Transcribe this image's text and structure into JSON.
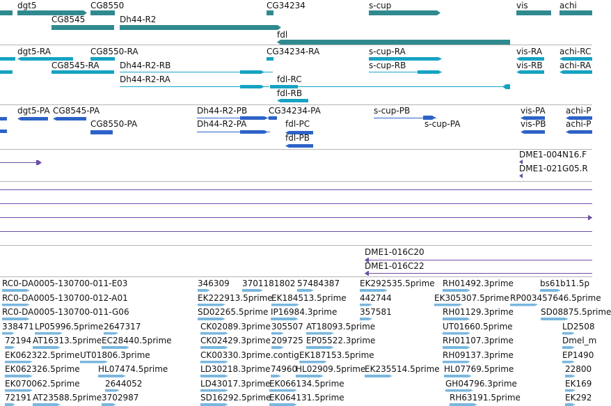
{
  "colors": {
    "gene": "#2f8a8f",
    "transcript": "#16a3c3",
    "protein": "#2d62c8",
    "clone": "#6a4fa6",
    "est": "#7ab7de",
    "separator": "#b4b4b4",
    "text": "#111111"
  },
  "tracks": {
    "genes": [
      "dgt5",
      "CG8550",
      "CG34234",
      "s-cup",
      "vis",
      "achi",
      "CG8545",
      "Dh44-R2",
      "fdl"
    ],
    "transcripts": [
      "dgt5-RA",
      "CG8550-RA",
      "CG34234-RA",
      "s-cup-RA",
      "vis-RA",
      "achi-RC",
      "CG8545-RA",
      "Dh44-R2-RB",
      "s-cup-RB",
      "vis-RB",
      "achi-RA",
      "Dh44-R2-RA",
      "fdl-RC",
      "fdl-RB"
    ],
    "proteins": [
      "dgt5-PA",
      "CG8545-PA",
      "Dh44-R2-PB",
      "CG34234-PA",
      "s-cup-PB",
      "vis-PA",
      "achi-P",
      "CG8550-PA",
      "Dh44-R2-PA",
      "fdl-PC",
      "s-cup-PA",
      "vis-PB",
      "achi-P",
      "fdl-PB"
    ],
    "clones": [
      "DME1-004N16.F",
      "DME1-021G05.R"
    ],
    "clones2": [
      "DME1-016C20",
      "DME1-016C22"
    ],
    "ests": [
      "RC0-DA0005-130700-011-E03",
      "346309",
      "3701181802",
      "57484387",
      "EK292535.5prime",
      "RH01492.3prime",
      "bs61b11.5p",
      "RC0-DA0005-130700-012-A01",
      "EK222913.5prime",
      "EK184513.5prime",
      "442744",
      "EK305307.5prime",
      "RP003457646.5prime",
      "RC0-DA0005-130700-011-G06",
      "SD02265.5prime",
      "IP16984.3prime",
      "357581",
      "RH01129.3prime",
      "SD08875.5prime",
      "338471",
      "LP05996.5prime",
      "2647317",
      "CK02089.3prime",
      "305507",
      "AT18093.5prime",
      "UT01660.5prime",
      "LD2508",
      "72194",
      "AT16313.5prime",
      "EC28440.5prime",
      "CK02429.3prime",
      "209725",
      "EP05522.3prime",
      "RH01107.3prime",
      "Dmel_m",
      "EK062322.5prime",
      "UT01806.3prime",
      "CK00330.3prime.contig",
      "EK187153.5prime",
      "RH09137.3prime",
      "EP1490",
      "EK062326.5prime",
      "HL07474.5prime",
      "LD30218.3prime",
      "74960",
      "HL02909.5prime",
      "EK235514.5prime",
      "HL07769.5prime",
      "22800",
      "EK070062.5prime",
      "2644052",
      "LD43017.3prime",
      "EK066134.5prime",
      "GH04796.3prime",
      "EK169",
      "72191",
      "AT23588.5prime",
      "3702987",
      "SD16292.5prime",
      "EK064131.5prime",
      "RH63191.5prime",
      "EK292"
    ]
  }
}
